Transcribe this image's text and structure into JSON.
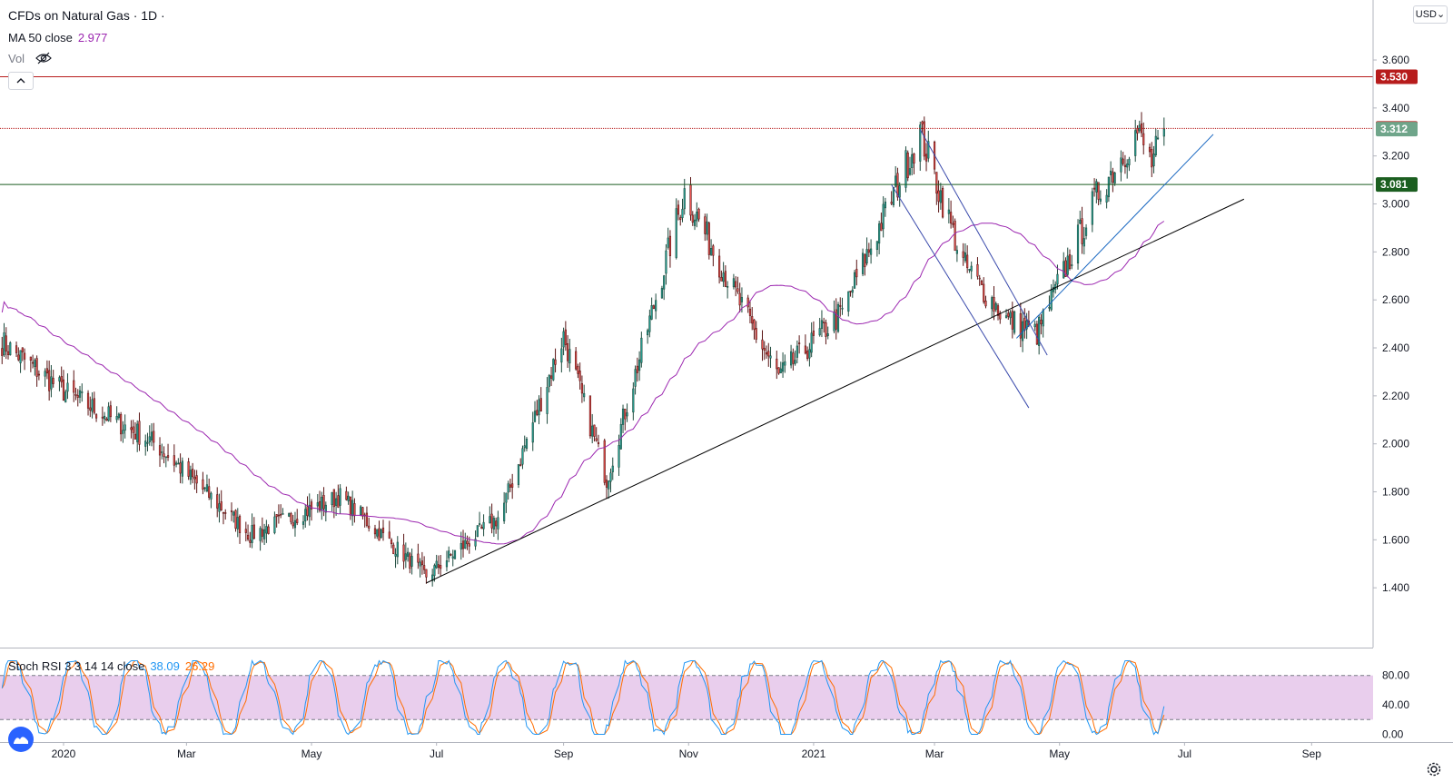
{
  "legend": {
    "title": "CFDs on Natural Gas · 1D ·",
    "ma_label": "MA 50 close",
    "ma_value": "2.977",
    "vol_label": "Vol",
    "stoch_label": "Stoch RSI 3 3 14 14 close",
    "stoch_k_value": "38.09",
    "stoch_d_value": "26.29"
  },
  "toolbar": {
    "currency": "USD"
  },
  "colors": {
    "up": "#26a69a",
    "down": "#ef5350",
    "up_body": "#1e6e4e",
    "down_body": "#9b1c1c",
    "ma": "#9c27b0",
    "resistance": "#b71c1c",
    "support": "#1b5e20",
    "stoch_k": "#2196f3",
    "stoch_d": "#ff6d00",
    "stoch_band": "#e1bee7",
    "trend": "#3949ab"
  },
  "chart_data": [
    {
      "type": "candlestick",
      "title": "CFDs on Natural Gas",
      "interval": "1D",
      "y_axis": {
        "ticks": [
          1.4,
          1.6,
          1.8,
          2.0,
          2.2,
          2.4,
          2.6,
          2.8,
          3.0,
          3.2,
          3.4,
          3.6
        ],
        "range": [
          1.2,
          3.85
        ]
      },
      "x_axis": {
        "labels": [
          "2020",
          "Mar",
          "May",
          "Jul",
          "Sep",
          "Nov",
          "2021",
          "Mar",
          "May",
          "Jul",
          "Sep"
        ]
      },
      "anchors": {
        "dates": [
          "2019-12-01",
          "2020-01-01",
          "2020-02-15",
          "2020-04-01",
          "2020-05-15",
          "2020-06-26",
          "2020-08-01",
          "2020-09-01",
          "2020-09-22",
          "2020-10-30",
          "2020-12-01",
          "2020-12-15",
          "2021-01-15",
          "2021-02-22",
          "2021-03-15",
          "2021-04-05",
          "2021-04-20",
          "2021-05-20",
          "2021-06-08",
          "2021-06-15",
          "2021-06-21"
        ],
        "close": [
          2.43,
          2.22,
          2.0,
          1.62,
          1.78,
          1.45,
          1.7,
          2.45,
          1.85,
          3.05,
          2.5,
          2.28,
          2.55,
          3.3,
          2.75,
          2.52,
          2.46,
          3.05,
          3.3,
          3.17,
          3.3
        ]
      },
      "last_close": 3.312,
      "last_high": 3.36,
      "high_marker": 3.315,
      "horizontal_lines": [
        {
          "name": "resistance-high",
          "price": 3.53,
          "label": "3.530",
          "style": "solid"
        },
        {
          "name": "resistance-mid",
          "price": 3.315,
          "label": "3.315",
          "style": "dotted"
        },
        {
          "name": "support-level",
          "price": 3.081,
          "label": "3.081",
          "style": "solid"
        }
      ],
      "trend_lines": [
        {
          "name": "long-uptrend-line",
          "start": [
            "2020-06-26",
            1.42
          ],
          "end": [
            "2021-07-30",
            3.02
          ],
          "color": "#000000"
        },
        {
          "name": "short-uptrend-line",
          "start": [
            "2021-04-10",
            2.44
          ],
          "end": [
            "2021-07-15",
            3.29
          ],
          "color": "#1565c0"
        },
        {
          "name": "channel-upper",
          "start": [
            "2021-02-22",
            3.31
          ],
          "end": [
            "2021-04-25",
            2.37
          ],
          "color": "#3949ab"
        },
        {
          "name": "channel-lower",
          "start": [
            "2021-02-08",
            3.08
          ],
          "end": [
            "2021-04-16",
            2.15
          ],
          "color": "#3949ab"
        }
      ],
      "moving_average": {
        "name": "MA 50 close",
        "last_value": 2.977
      }
    },
    {
      "type": "line",
      "title": "Stoch RSI 3 3 14 14 close",
      "y_axis": {
        "ticks": [
          0,
          40,
          80
        ],
        "tick_labels": [
          "0.00",
          "40.00",
          "80.00"
        ],
        "range": [
          -8,
          108
        ],
        "band": [
          20,
          80
        ]
      },
      "series": [
        {
          "name": "K",
          "last_value": 38.09
        },
        {
          "name": "D",
          "last_value": 26.29
        }
      ]
    }
  ]
}
